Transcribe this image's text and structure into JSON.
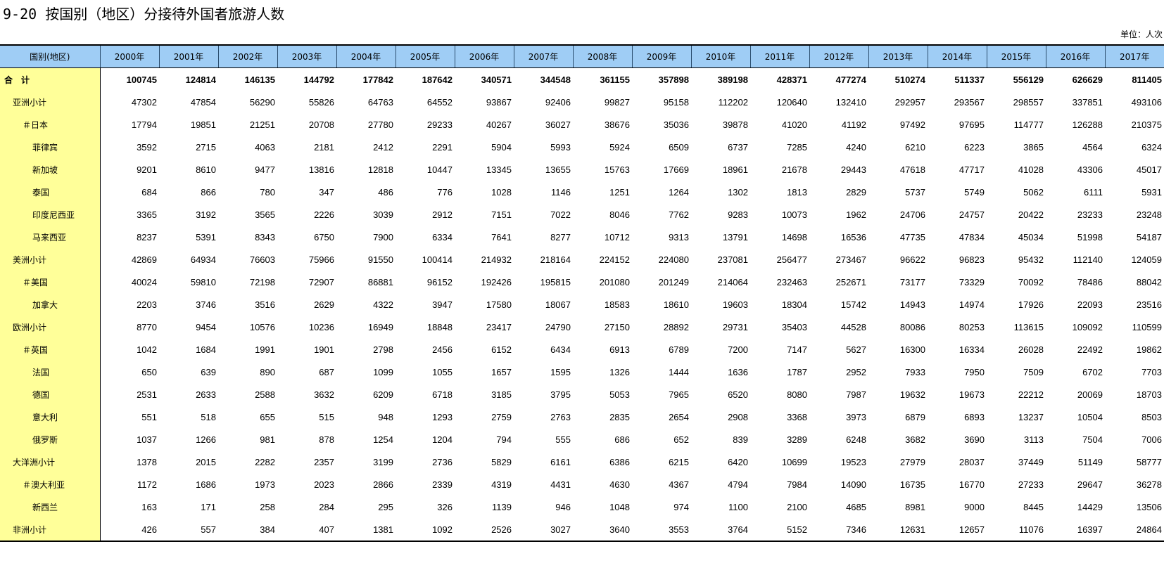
{
  "title": "9-20 按国别（地区）分接待外国者旅游人数",
  "unit": "单位：人次",
  "table": {
    "header": [
      "国别(地区)",
      "2000年",
      "2001年",
      "2002年",
      "2003年",
      "2004年",
      "2005年",
      "2006年",
      "2007年",
      "2008年",
      "2009年",
      "2010年",
      "2011年",
      "2012年",
      "2013年",
      "2014年",
      "2015年",
      "2016年",
      "2017年"
    ],
    "rows": [
      [
        "合　计",
        100745,
        124814,
        146135,
        144792,
        177842,
        187642,
        340571,
        344548,
        361155,
        357898,
        389198,
        428371,
        477274,
        510274,
        511337,
        556129,
        626629,
        811405
      ],
      [
        "亚洲小计",
        47302,
        47854,
        56290,
        55826,
        64763,
        64552,
        93867,
        92406,
        99827,
        95158,
        112202,
        120640,
        132410,
        292957,
        293567,
        298557,
        337851,
        493106
      ],
      [
        "＃日本",
        17794,
        19851,
        21251,
        20708,
        27780,
        29233,
        40267,
        36027,
        38676,
        35036,
        39878,
        41020,
        41192,
        97492,
        97695,
        114777,
        126288,
        210375
      ],
      [
        "菲律宾",
        3592,
        2715,
        4063,
        2181,
        2412,
        2291,
        5904,
        5993,
        5924,
        6509,
        6737,
        7285,
        4240,
        6210,
        6223,
        3865,
        4564,
        6324
      ],
      [
        "新加坡",
        9201,
        8610,
        9477,
        13816,
        12818,
        10447,
        13345,
        13655,
        15763,
        17669,
        18961,
        21678,
        29443,
        47618,
        47717,
        41028,
        43306,
        45017
      ],
      [
        "泰国",
        684,
        866,
        780,
        347,
        486,
        776,
        1028,
        1146,
        1251,
        1264,
        1302,
        1813,
        2829,
        5737,
        5749,
        5062,
        6111,
        5931
      ],
      [
        "印度尼西亚",
        3365,
        3192,
        3565,
        2226,
        3039,
        2912,
        7151,
        7022,
        8046,
        7762,
        9283,
        10073,
        1962,
        24706,
        24757,
        20422,
        23233,
        23248
      ],
      [
        "马来西亚",
        8237,
        5391,
        8343,
        6750,
        7900,
        6334,
        7641,
        8277,
        10712,
        9313,
        13791,
        14698,
        16536,
        47735,
        47834,
        45034,
        51998,
        54187
      ],
      [
        "美洲小计",
        42869,
        64934,
        76603,
        75966,
        91550,
        100414,
        214932,
        218164,
        224152,
        224080,
        237081,
        256477,
        273467,
        96622,
        96823,
        95432,
        112140,
        124059
      ],
      [
        "＃美国",
        40024,
        59810,
        72198,
        72907,
        86881,
        96152,
        192426,
        195815,
        201080,
        201249,
        214064,
        232463,
        252671,
        73177,
        73329,
        70092,
        78486,
        88042
      ],
      [
        "加拿大",
        2203,
        3746,
        3516,
        2629,
        4322,
        3947,
        17580,
        18067,
        18583,
        18610,
        19603,
        18304,
        15742,
        14943,
        14974,
        17926,
        22093,
        23516
      ],
      [
        "欧洲小计",
        8770,
        9454,
        10576,
        10236,
        16949,
        18848,
        23417,
        24790,
        27150,
        28892,
        29731,
        35403,
        44528,
        80086,
        80253,
        113615,
        109092,
        110599
      ],
      [
        "＃英国",
        1042,
        1684,
        1991,
        1901,
        2798,
        2456,
        6152,
        6434,
        6913,
        6789,
        7200,
        7147,
        5627,
        16300,
        16334,
        26028,
        22492,
        19862
      ],
      [
        "法国",
        650,
        639,
        890,
        687,
        1099,
        1055,
        1657,
        1595,
        1326,
        1444,
        1636,
        1787,
        2952,
        7933,
        7950,
        7509,
        6702,
        7703
      ],
      [
        "德国",
        2531,
        2633,
        2588,
        3632,
        6209,
        6718,
        3185,
        3795,
        5053,
        7965,
        6520,
        8080,
        7987,
        19632,
        19673,
        22212,
        20069,
        18703
      ],
      [
        "意大利",
        551,
        518,
        655,
        515,
        948,
        1293,
        2759,
        2763,
        2835,
        2654,
        2908,
        3368,
        3973,
        6879,
        6893,
        13237,
        10504,
        8503
      ],
      [
        "俄罗斯",
        1037,
        1266,
        981,
        878,
        1254,
        1204,
        794,
        555,
        686,
        652,
        839,
        3289,
        6248,
        3682,
        3690,
        3113,
        7504,
        7006
      ],
      [
        "大洋洲小计",
        1378,
        2015,
        2282,
        2357,
        3199,
        2736,
        5829,
        6161,
        6386,
        6215,
        6420,
        10699,
        19523,
        27979,
        28037,
        37449,
        51149,
        58777
      ],
      [
        "＃澳大利亚",
        1172,
        1686,
        1973,
        2023,
        2866,
        2339,
        4319,
        4431,
        4630,
        4367,
        4794,
        7984,
        14090,
        16735,
        16770,
        27233,
        29647,
        36278
      ],
      [
        "新西兰",
        163,
        171,
        258,
        284,
        295,
        326,
        1139,
        946,
        1048,
        974,
        1100,
        2100,
        4685,
        8981,
        9000,
        8445,
        14429,
        13506
      ],
      [
        "非洲小计",
        426,
        557,
        384,
        407,
        1381,
        1092,
        2526,
        3027,
        3640,
        3553,
        3764,
        5152,
        7346,
        12631,
        12657,
        11076,
        16397,
        24864
      ]
    ]
  }
}
